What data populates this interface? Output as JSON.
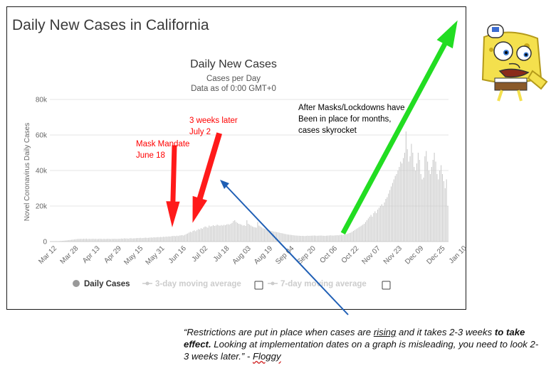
{
  "page": {
    "title": "Daily New Cases in California"
  },
  "chart_data": {
    "type": "bar",
    "title": "Daily New Cases",
    "subtitle": "Cases per Day",
    "subtitle2": "Data as of 0:00 GMT+0",
    "ylabel": "Novel Coronavirus Daily Cases",
    "xlabel": "",
    "ylim": [
      0,
      80000
    ],
    "y_ticks": [
      {
        "value": 0,
        "label": "0"
      },
      {
        "value": 20000,
        "label": "20k"
      },
      {
        "value": 40000,
        "label": "40k"
      },
      {
        "value": 60000,
        "label": "60k"
      },
      {
        "value": 80000,
        "label": "80k"
      }
    ],
    "x_ticks": [
      "Mar 12",
      "Mar 28",
      "Apr 13",
      "Apr 29",
      "May 15",
      "May 31",
      "Jun 16",
      "Jul 02",
      "Jul 18",
      "Aug 03",
      "Aug 19",
      "Sep 04",
      "Sep 20",
      "Oct 06",
      "Oct 22",
      "Nov 07",
      "Nov 23",
      "Dec 09",
      "Dec 25",
      "Jan 10"
    ],
    "start_date": "2020-03-12",
    "series": [
      {
        "name": "Daily Cases",
        "color": "#c8c8c8",
        "values": [
          100,
          130,
          160,
          200,
          250,
          320,
          380,
          450,
          520,
          600,
          700,
          800,
          900,
          1000,
          1100,
          1200,
          1300,
          1400,
          1500,
          1500,
          1550,
          1450,
          1600,
          1500,
          1650,
          1400,
          1550,
          1450,
          1500,
          1600,
          1450,
          1550,
          1400,
          1500,
          1600,
          1500,
          1400,
          1550,
          1450,
          1500,
          1600,
          1500,
          1400,
          1550,
          1500,
          1600,
          1450,
          1500,
          1550,
          1600,
          1700,
          1600,
          1800,
          1700,
          1750,
          1600,
          1800,
          1900,
          1700,
          1800,
          1850,
          1900,
          2000,
          1950,
          2100,
          1900,
          2000,
          2100,
          2200,
          2050,
          2100,
          2200,
          2300,
          2200,
          2400,
          2300,
          2400,
          2500,
          2400,
          2600,
          2500,
          2700,
          2600,
          2800,
          2700,
          2900,
          2800,
          3000,
          3100,
          3200,
          3000,
          3300,
          3100,
          3400,
          3500,
          3600,
          3400,
          3800,
          4200,
          4500,
          5000,
          5500,
          5200,
          6000,
          6300,
          5800,
          6500,
          7000,
          6800,
          7500,
          7200,
          8000,
          8500,
          8200,
          7800,
          9000,
          8500,
          8700,
          9200,
          8800,
          9000,
          9500,
          9100,
          8900,
          9300,
          9000,
          9400,
          9200,
          9600,
          9800,
          9500,
          10000,
          10500,
          11500,
          12000,
          11000,
          10500,
          10000,
          9800,
          9500,
          9000,
          9200,
          8800,
          12000,
          10000,
          9500,
          9000,
          8500,
          8200,
          8000,
          7800,
          11000,
          9000,
          8500,
          8000,
          7500,
          7200,
          7000,
          6800,
          6500,
          6300,
          6000,
          5800,
          5600,
          5500,
          5300,
          5200,
          5000,
          4800,
          4700,
          4500,
          4300,
          4200,
          4000,
          3900,
          3800,
          3700,
          3600,
          3500,
          3400,
          3350,
          3300,
          3250,
          3200,
          3200,
          3150,
          3100,
          3200,
          3300,
          3200,
          3250,
          3300,
          3350,
          3400,
          3300,
          3250,
          3300,
          3350,
          3400,
          3300,
          3250,
          3200,
          3300,
          3350,
          3400,
          3500,
          3400,
          3350,
          3450,
          3500,
          3600,
          3500,
          3700,
          3800,
          3700,
          3900,
          4000,
          4200,
          4500,
          4800,
          5000,
          5500,
          6000,
          6500,
          7000,
          7500,
          8000,
          8500,
          9000,
          9500,
          10000,
          11000,
          12000,
          13000,
          14000,
          15000,
          14000,
          16000,
          17000,
          16000,
          18000,
          19000,
          20000,
          21000,
          20000,
          22000,
          24000,
          25000,
          27000,
          29000,
          31000,
          33000,
          35000,
          37000,
          38000,
          40000,
          42000,
          45000,
          44000,
          47000,
          50000,
          62000,
          52000,
          45000,
          48000,
          55000,
          50000,
          42000,
          40000,
          44000,
          50000,
          46000,
          38000,
          35000,
          36000,
          48000,
          51000,
          45000,
          40000,
          38000,
          42000,
          46000,
          50000,
          45000,
          38000,
          35000,
          40000,
          43000,
          38000,
          34000,
          30000,
          35000,
          20000
        ]
      }
    ],
    "legend": {
      "placement": "bottom",
      "items": [
        "Daily Cases",
        "3-day moving average",
        "7-day moving average"
      ]
    },
    "annotations": [
      {
        "text_lines": [
          "Mask Mandate",
          "June 18"
        ],
        "color": "#ff0000"
      },
      {
        "text_lines": [
          "3 weeks later",
          "July 2"
        ],
        "color": "#ff0000"
      },
      {
        "text_lines": [
          "After Masks/Lockdowns have",
          "Been in place for months,",
          "cases skyrocket"
        ],
        "color": "#000000"
      }
    ],
    "colors": {
      "bars": "#c8c8c8",
      "red_arrow": "#ff1a1a",
      "green_arrow": "#22dd22",
      "blue_arrow": "#1f5fb5",
      "axis_text": "#666666",
      "title_text": "#333333"
    }
  },
  "quote": {
    "part1": "“Restrictions are put in place when cases are ",
    "rising": "rising",
    "part2": " and it takes 2-3 weeks ",
    "bold": "to take effect.",
    "part3": " Looking at implementation dates on a graph is misleading, you need to look 2-3 weeks later.” - ",
    "author": "Floggy"
  },
  "meme_icon": "mocking-spongebob-icon"
}
